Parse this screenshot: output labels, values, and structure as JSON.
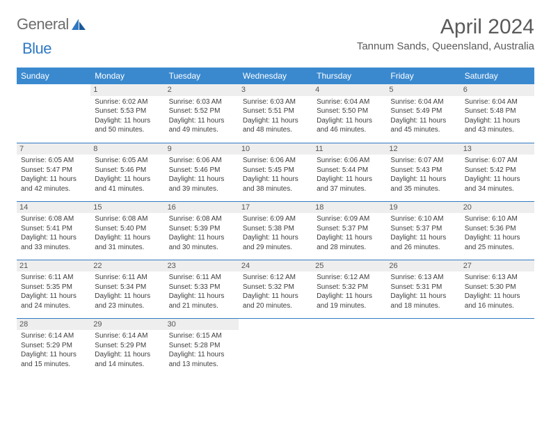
{
  "logo": {
    "part1": "General",
    "part2": "Blue"
  },
  "title": "April 2024",
  "location": "Tannum Sands, Queensland, Australia",
  "colors": {
    "header_bg": "#3a89cf",
    "border": "#2f79c3",
    "daynum_bg": "#eeeeee",
    "text": "#3d3d3d",
    "logo_gray": "#6d6d6d",
    "logo_blue": "#2f79c3"
  },
  "weekdays": [
    "Sunday",
    "Monday",
    "Tuesday",
    "Wednesday",
    "Thursday",
    "Friday",
    "Saturday"
  ],
  "weeks": [
    [
      null,
      {
        "n": "1",
        "sr": "Sunrise: 6:02 AM",
        "ss": "Sunset: 5:53 PM",
        "dl": "Daylight: 11 hours and 50 minutes."
      },
      {
        "n": "2",
        "sr": "Sunrise: 6:03 AM",
        "ss": "Sunset: 5:52 PM",
        "dl": "Daylight: 11 hours and 49 minutes."
      },
      {
        "n": "3",
        "sr": "Sunrise: 6:03 AM",
        "ss": "Sunset: 5:51 PM",
        "dl": "Daylight: 11 hours and 48 minutes."
      },
      {
        "n": "4",
        "sr": "Sunrise: 6:04 AM",
        "ss": "Sunset: 5:50 PM",
        "dl": "Daylight: 11 hours and 46 minutes."
      },
      {
        "n": "5",
        "sr": "Sunrise: 6:04 AM",
        "ss": "Sunset: 5:49 PM",
        "dl": "Daylight: 11 hours and 45 minutes."
      },
      {
        "n": "6",
        "sr": "Sunrise: 6:04 AM",
        "ss": "Sunset: 5:48 PM",
        "dl": "Daylight: 11 hours and 43 minutes."
      }
    ],
    [
      {
        "n": "7",
        "sr": "Sunrise: 6:05 AM",
        "ss": "Sunset: 5:47 PM",
        "dl": "Daylight: 11 hours and 42 minutes."
      },
      {
        "n": "8",
        "sr": "Sunrise: 6:05 AM",
        "ss": "Sunset: 5:46 PM",
        "dl": "Daylight: 11 hours and 41 minutes."
      },
      {
        "n": "9",
        "sr": "Sunrise: 6:06 AM",
        "ss": "Sunset: 5:46 PM",
        "dl": "Daylight: 11 hours and 39 minutes."
      },
      {
        "n": "10",
        "sr": "Sunrise: 6:06 AM",
        "ss": "Sunset: 5:45 PM",
        "dl": "Daylight: 11 hours and 38 minutes."
      },
      {
        "n": "11",
        "sr": "Sunrise: 6:06 AM",
        "ss": "Sunset: 5:44 PM",
        "dl": "Daylight: 11 hours and 37 minutes."
      },
      {
        "n": "12",
        "sr": "Sunrise: 6:07 AM",
        "ss": "Sunset: 5:43 PM",
        "dl": "Daylight: 11 hours and 35 minutes."
      },
      {
        "n": "13",
        "sr": "Sunrise: 6:07 AM",
        "ss": "Sunset: 5:42 PM",
        "dl": "Daylight: 11 hours and 34 minutes."
      }
    ],
    [
      {
        "n": "14",
        "sr": "Sunrise: 6:08 AM",
        "ss": "Sunset: 5:41 PM",
        "dl": "Daylight: 11 hours and 33 minutes."
      },
      {
        "n": "15",
        "sr": "Sunrise: 6:08 AM",
        "ss": "Sunset: 5:40 PM",
        "dl": "Daylight: 11 hours and 31 minutes."
      },
      {
        "n": "16",
        "sr": "Sunrise: 6:08 AM",
        "ss": "Sunset: 5:39 PM",
        "dl": "Daylight: 11 hours and 30 minutes."
      },
      {
        "n": "17",
        "sr": "Sunrise: 6:09 AM",
        "ss": "Sunset: 5:38 PM",
        "dl": "Daylight: 11 hours and 29 minutes."
      },
      {
        "n": "18",
        "sr": "Sunrise: 6:09 AM",
        "ss": "Sunset: 5:37 PM",
        "dl": "Daylight: 11 hours and 28 minutes."
      },
      {
        "n": "19",
        "sr": "Sunrise: 6:10 AM",
        "ss": "Sunset: 5:37 PM",
        "dl": "Daylight: 11 hours and 26 minutes."
      },
      {
        "n": "20",
        "sr": "Sunrise: 6:10 AM",
        "ss": "Sunset: 5:36 PM",
        "dl": "Daylight: 11 hours and 25 minutes."
      }
    ],
    [
      {
        "n": "21",
        "sr": "Sunrise: 6:11 AM",
        "ss": "Sunset: 5:35 PM",
        "dl": "Daylight: 11 hours and 24 minutes."
      },
      {
        "n": "22",
        "sr": "Sunrise: 6:11 AM",
        "ss": "Sunset: 5:34 PM",
        "dl": "Daylight: 11 hours and 23 minutes."
      },
      {
        "n": "23",
        "sr": "Sunrise: 6:11 AM",
        "ss": "Sunset: 5:33 PM",
        "dl": "Daylight: 11 hours and 21 minutes."
      },
      {
        "n": "24",
        "sr": "Sunrise: 6:12 AM",
        "ss": "Sunset: 5:32 PM",
        "dl": "Daylight: 11 hours and 20 minutes."
      },
      {
        "n": "25",
        "sr": "Sunrise: 6:12 AM",
        "ss": "Sunset: 5:32 PM",
        "dl": "Daylight: 11 hours and 19 minutes."
      },
      {
        "n": "26",
        "sr": "Sunrise: 6:13 AM",
        "ss": "Sunset: 5:31 PM",
        "dl": "Daylight: 11 hours and 18 minutes."
      },
      {
        "n": "27",
        "sr": "Sunrise: 6:13 AM",
        "ss": "Sunset: 5:30 PM",
        "dl": "Daylight: 11 hours and 16 minutes."
      }
    ],
    [
      {
        "n": "28",
        "sr": "Sunrise: 6:14 AM",
        "ss": "Sunset: 5:29 PM",
        "dl": "Daylight: 11 hours and 15 minutes."
      },
      {
        "n": "29",
        "sr": "Sunrise: 6:14 AM",
        "ss": "Sunset: 5:29 PM",
        "dl": "Daylight: 11 hours and 14 minutes."
      },
      {
        "n": "30",
        "sr": "Sunrise: 6:15 AM",
        "ss": "Sunset: 5:28 PM",
        "dl": "Daylight: 11 hours and 13 minutes."
      },
      null,
      null,
      null,
      null
    ]
  ]
}
